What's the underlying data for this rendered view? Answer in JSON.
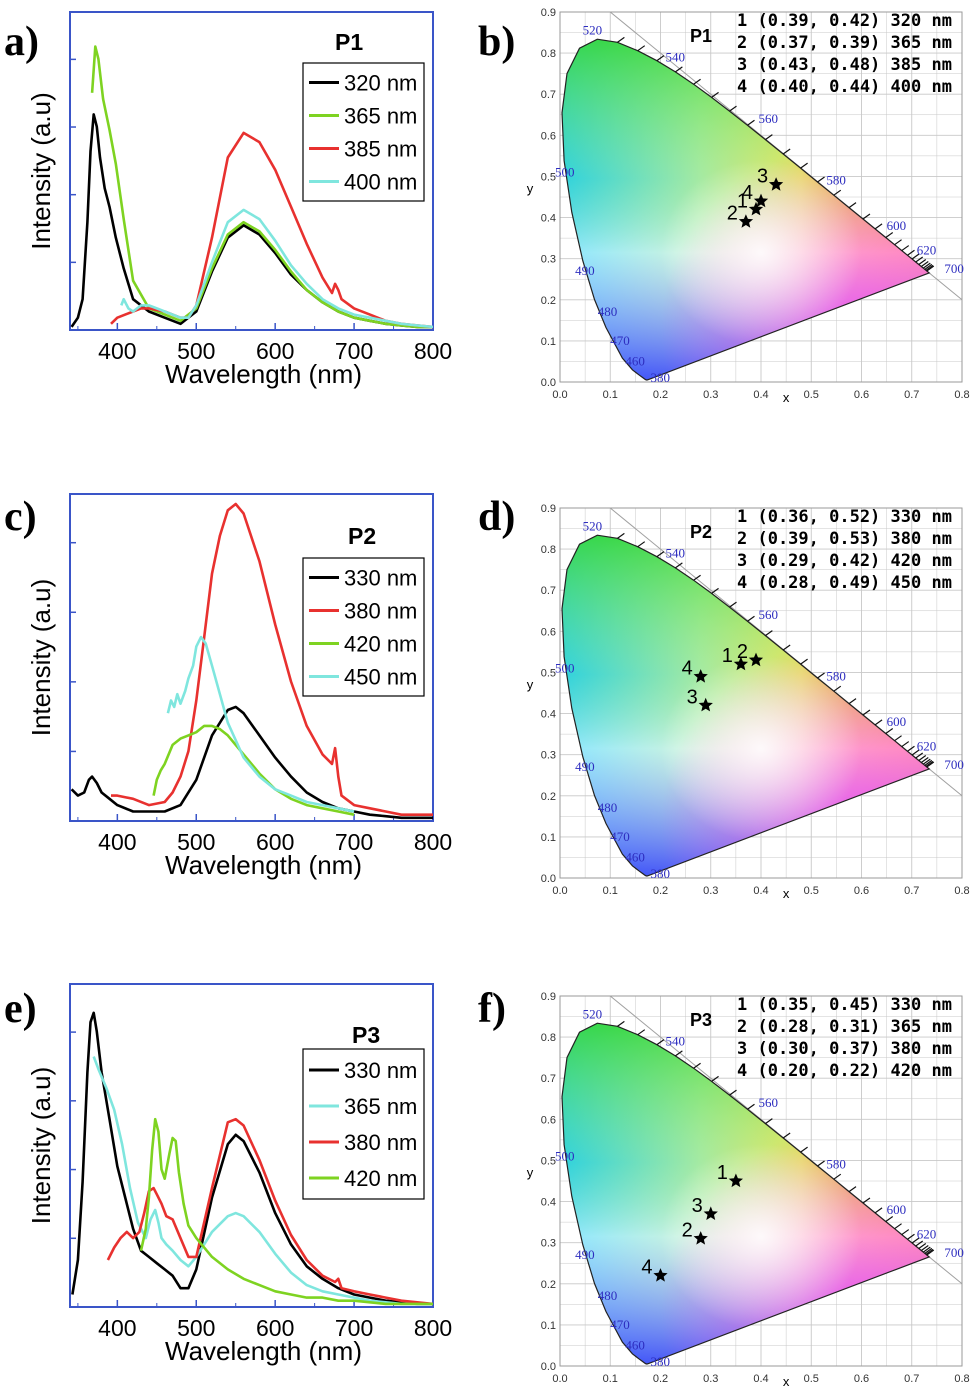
{
  "emission_axis": {
    "xlabel": "Wavelength (nm)",
    "ylabel": "Intensity (a.u)",
    "xlim": [
      340,
      800
    ],
    "xticks": [
      400,
      500,
      600,
      700,
      800
    ],
    "ylim": [
      0,
      1
    ]
  },
  "cie_axis": {
    "xlabel": "x",
    "ylabel": "y",
    "xticks": [
      "0.0",
      "0.1",
      "0.2",
      "0.3",
      "0.4",
      "0.5",
      "0.6",
      "0.7",
      "0.8"
    ],
    "yticks": [
      "0.0",
      "0.1",
      "0.2",
      "0.3",
      "0.4",
      "0.5",
      "0.6",
      "0.7",
      "0.8",
      "0.9"
    ],
    "wavelength_labels": [
      "380",
      "460",
      "470",
      "480",
      "490",
      "500",
      "520",
      "540",
      "560",
      "580",
      "600",
      "620",
      "700"
    ]
  },
  "colors": {
    "axis_blue": "#3a55c8",
    "black": "#000000",
    "green": "#7ed321",
    "red": "#e8312f",
    "cyan": "#7fe6de"
  },
  "panels": {
    "a": {
      "letter": "a)",
      "title": "P1"
    },
    "b": {
      "letter": "b)",
      "title": "P1"
    },
    "c": {
      "letter": "c)",
      "title": "P2"
    },
    "d": {
      "letter": "d)",
      "title": "P2"
    },
    "e": {
      "letter": "e)",
      "title": "P3"
    },
    "f": {
      "letter": "f)",
      "title": "P3"
    }
  },
  "chart_data": [
    {
      "id": "a",
      "type": "line",
      "title": "P1",
      "xlabel": "Wavelength (nm)",
      "ylabel": "Intensity (a.u)",
      "xlim": [
        340,
        800
      ],
      "series": [
        {
          "name": "320 nm",
          "color": "#000000",
          "x": [
            342,
            350,
            356,
            362,
            366,
            370,
            374,
            378,
            384,
            390,
            398,
            408,
            420,
            440,
            460,
            480,
            500,
            520,
            540,
            560,
            580,
            600,
            620,
            640,
            660,
            680,
            700,
            720,
            740,
            760,
            780,
            800
          ],
          "y": [
            0.01,
            0.04,
            0.1,
            0.35,
            0.58,
            0.7,
            0.66,
            0.56,
            0.46,
            0.4,
            0.3,
            0.2,
            0.1,
            0.06,
            0.04,
            0.02,
            0.06,
            0.19,
            0.3,
            0.34,
            0.31,
            0.25,
            0.18,
            0.13,
            0.09,
            0.06,
            0.04,
            0.03,
            0.02,
            0.015,
            0.01,
            0.01
          ]
        },
        {
          "name": "365 nm",
          "color": "#7ed321",
          "x": [
            368,
            372,
            376,
            382,
            390,
            398,
            408,
            420,
            440,
            460,
            480,
            500,
            520,
            540,
            560,
            580,
            600,
            620,
            640,
            660,
            680,
            700,
            720,
            740,
            760,
            780,
            800
          ],
          "y": [
            0.77,
            0.92,
            0.88,
            0.75,
            0.65,
            0.54,
            0.36,
            0.16,
            0.07,
            0.05,
            0.03,
            0.07,
            0.2,
            0.31,
            0.35,
            0.32,
            0.26,
            0.19,
            0.13,
            0.09,
            0.06,
            0.04,
            0.03,
            0.02,
            0.015,
            0.01,
            0.01
          ]
        },
        {
          "name": "385 nm",
          "color": "#e8312f",
          "x": [
            392,
            400,
            410,
            420,
            430,
            440,
            450,
            460,
            470,
            480,
            490,
            500,
            520,
            540,
            560,
            580,
            600,
            620,
            640,
            660,
            672,
            676,
            680,
            684,
            700,
            720,
            740,
            760,
            780,
            800
          ],
          "y": [
            0.02,
            0.04,
            0.05,
            0.06,
            0.07,
            0.07,
            0.065,
            0.06,
            0.05,
            0.04,
            0.04,
            0.08,
            0.3,
            0.56,
            0.64,
            0.61,
            0.52,
            0.4,
            0.28,
            0.17,
            0.12,
            0.15,
            0.13,
            0.1,
            0.07,
            0.05,
            0.03,
            0.02,
            0.015,
            0.01
          ]
        },
        {
          "name": "400 nm",
          "color": "#7fe6de",
          "x": [
            405,
            408,
            414,
            420,
            430,
            440,
            450,
            460,
            470,
            480,
            490,
            500,
            520,
            540,
            560,
            580,
            600,
            620,
            640,
            660,
            680,
            700,
            720,
            740,
            760,
            780,
            800
          ],
          "y": [
            0.08,
            0.1,
            0.07,
            0.06,
            0.08,
            0.08,
            0.07,
            0.06,
            0.05,
            0.04,
            0.04,
            0.08,
            0.22,
            0.35,
            0.39,
            0.36,
            0.29,
            0.21,
            0.15,
            0.1,
            0.07,
            0.05,
            0.04,
            0.03,
            0.02,
            0.015,
            0.01
          ]
        }
      ]
    },
    {
      "id": "c",
      "type": "line",
      "title": "P2",
      "xlabel": "Wavelength (nm)",
      "ylabel": "Intensity (a.u)",
      "xlim": [
        340,
        800
      ],
      "series": [
        {
          "name": "330 nm",
          "color": "#000000",
          "x": [
            342,
            350,
            358,
            364,
            368,
            374,
            380,
            390,
            400,
            420,
            440,
            460,
            480,
            500,
            520,
            540,
            550,
            560,
            580,
            600,
            620,
            640,
            660,
            680,
            700,
            720,
            740,
            760,
            780,
            800
          ],
          "y": [
            0.1,
            0.08,
            0.09,
            0.13,
            0.14,
            0.12,
            0.09,
            0.07,
            0.05,
            0.03,
            0.03,
            0.03,
            0.05,
            0.13,
            0.27,
            0.35,
            0.36,
            0.34,
            0.27,
            0.2,
            0.14,
            0.09,
            0.06,
            0.04,
            0.03,
            0.02,
            0.015,
            0.01,
            0.01,
            0.01
          ]
        },
        {
          "name": "380 nm",
          "color": "#e8312f",
          "x": [
            392,
            400,
            420,
            440,
            460,
            470,
            480,
            490,
            500,
            510,
            520,
            530,
            540,
            550,
            560,
            580,
            600,
            620,
            640,
            660,
            672,
            676,
            680,
            684,
            700,
            720,
            740,
            760,
            780,
            800
          ],
          "y": [
            0.08,
            0.08,
            0.07,
            0.05,
            0.06,
            0.09,
            0.14,
            0.22,
            0.38,
            0.58,
            0.78,
            0.9,
            0.98,
            1.0,
            0.97,
            0.82,
            0.62,
            0.44,
            0.3,
            0.21,
            0.18,
            0.23,
            0.14,
            0.08,
            0.05,
            0.04,
            0.03,
            0.02,
            0.02,
            0.02
          ]
        },
        {
          "name": "420 nm",
          "color": "#7ed321",
          "x": [
            446,
            450,
            455,
            460,
            470,
            480,
            490,
            500,
            510,
            520,
            530,
            540,
            560,
            580,
            600,
            620,
            640,
            660,
            680,
            700
          ],
          "y": [
            0.08,
            0.13,
            0.16,
            0.18,
            0.24,
            0.26,
            0.27,
            0.28,
            0.3,
            0.3,
            0.29,
            0.27,
            0.21,
            0.15,
            0.1,
            0.07,
            0.05,
            0.04,
            0.03,
            0.02
          ]
        },
        {
          "name": "450 nm",
          "color": "#7fe6de",
          "x": [
            464,
            468,
            472,
            476,
            480,
            486,
            490,
            496,
            500,
            506,
            512,
            520,
            530,
            540,
            560,
            580,
            600,
            620,
            640,
            660,
            680,
            700
          ],
          "y": [
            0.34,
            0.38,
            0.36,
            0.4,
            0.37,
            0.41,
            0.45,
            0.49,
            0.55,
            0.58,
            0.56,
            0.49,
            0.4,
            0.31,
            0.2,
            0.14,
            0.1,
            0.08,
            0.06,
            0.05,
            0.04,
            0.03
          ]
        }
      ]
    },
    {
      "id": "e",
      "type": "line",
      "title": "P3",
      "xlabel": "Wavelength (nm)",
      "ylabel": "Intensity (a.u)",
      "xlim": [
        340,
        800
      ],
      "series": [
        {
          "name": "330 nm",
          "color": "#000000",
          "x": [
            343,
            350,
            356,
            362,
            366,
            370,
            374,
            380,
            390,
            400,
            410,
            420,
            430,
            440,
            450,
            460,
            470,
            480,
            490,
            500,
            520,
            540,
            550,
            560,
            580,
            600,
            620,
            640,
            660,
            680,
            700,
            720,
            740,
            760,
            780,
            800
          ],
          "y": [
            0.04,
            0.15,
            0.4,
            0.75,
            0.91,
            0.94,
            0.88,
            0.75,
            0.6,
            0.45,
            0.35,
            0.25,
            0.18,
            0.16,
            0.14,
            0.12,
            0.1,
            0.06,
            0.06,
            0.12,
            0.35,
            0.52,
            0.55,
            0.53,
            0.43,
            0.3,
            0.2,
            0.13,
            0.09,
            0.06,
            0.04,
            0.03,
            0.02,
            0.015,
            0.01,
            0.01
          ]
        },
        {
          "name": "365 nm",
          "color": "#7fe6de",
          "x": [
            370,
            376,
            386,
            396,
            406,
            416,
            426,
            436,
            442,
            448,
            452,
            456,
            462,
            470,
            480,
            490,
            500,
            520,
            540,
            550,
            560,
            580,
            600,
            620,
            640,
            660,
            680,
            700,
            720,
            740,
            760,
            780,
            800
          ],
          "y": [
            0.8,
            0.76,
            0.7,
            0.63,
            0.52,
            0.38,
            0.27,
            0.22,
            0.28,
            0.31,
            0.27,
            0.22,
            0.2,
            0.18,
            0.15,
            0.13,
            0.16,
            0.24,
            0.29,
            0.3,
            0.29,
            0.24,
            0.17,
            0.11,
            0.07,
            0.05,
            0.04,
            0.03,
            0.02,
            0.015,
            0.01,
            0.01,
            0.01
          ]
        },
        {
          "name": "380 nm",
          "color": "#e8312f",
          "x": [
            388,
            396,
            404,
            412,
            420,
            428,
            434,
            440,
            446,
            450,
            456,
            462,
            470,
            480,
            490,
            500,
            520,
            540,
            550,
            560,
            580,
            600,
            620,
            640,
            660,
            676,
            680,
            684,
            700,
            720,
            740,
            760,
            780,
            800
          ],
          "y": [
            0.15,
            0.19,
            0.22,
            0.24,
            0.22,
            0.24,
            0.3,
            0.37,
            0.38,
            0.36,
            0.33,
            0.29,
            0.28,
            0.22,
            0.16,
            0.16,
            0.38,
            0.59,
            0.6,
            0.58,
            0.47,
            0.34,
            0.23,
            0.15,
            0.1,
            0.08,
            0.09,
            0.06,
            0.05,
            0.04,
            0.03,
            0.02,
            0.015,
            0.01
          ]
        },
        {
          "name": "420 nm",
          "color": "#7ed321",
          "x": [
            430,
            436,
            440,
            444,
            448,
            452,
            456,
            460,
            466,
            470,
            474,
            478,
            484,
            490,
            500,
            520,
            540,
            560,
            580,
            600,
            620,
            640,
            660,
            680,
            700,
            720,
            740,
            760,
            780,
            800
          ],
          "y": [
            0.18,
            0.25,
            0.35,
            0.5,
            0.6,
            0.56,
            0.44,
            0.41,
            0.49,
            0.54,
            0.53,
            0.43,
            0.33,
            0.26,
            0.22,
            0.16,
            0.12,
            0.09,
            0.07,
            0.05,
            0.04,
            0.03,
            0.03,
            0.02,
            0.02,
            0.015,
            0.01,
            0.01,
            0.01,
            0.01
          ]
        }
      ]
    },
    {
      "id": "b",
      "type": "scatter",
      "title": "P1",
      "xlabel": "x",
      "ylabel": "y",
      "xlim": [
        0,
        0.8
      ],
      "ylim": [
        0,
        0.9
      ],
      "info": [
        "1 (0.39, 0.42) 320 nm",
        "2 (0.37, 0.39) 365 nm",
        "3 (0.43, 0.48) 385 nm",
        "4 (0.40, 0.44) 400 nm"
      ],
      "points": [
        {
          "label": "1",
          "x": 0.39,
          "y": 0.42
        },
        {
          "label": "2",
          "x": 0.37,
          "y": 0.39
        },
        {
          "label": "3",
          "x": 0.43,
          "y": 0.48
        },
        {
          "label": "4",
          "x": 0.4,
          "y": 0.44
        }
      ]
    },
    {
      "id": "d",
      "type": "scatter",
      "title": "P2",
      "xlabel": "x",
      "ylabel": "y",
      "xlim": [
        0,
        0.8
      ],
      "ylim": [
        0,
        0.9
      ],
      "info": [
        "1 (0.36, 0.52) 330 nm",
        "2 (0.39, 0.53) 380 nm",
        "3 (0.29, 0.42) 420 nm",
        "4 (0.28, 0.49) 450 nm"
      ],
      "points": [
        {
          "label": "1",
          "x": 0.36,
          "y": 0.52
        },
        {
          "label": "2",
          "x": 0.39,
          "y": 0.53
        },
        {
          "label": "3",
          "x": 0.29,
          "y": 0.42
        },
        {
          "label": "4",
          "x": 0.28,
          "y": 0.49
        }
      ]
    },
    {
      "id": "f",
      "type": "scatter",
      "title": "P3",
      "xlabel": "x",
      "ylabel": "y",
      "xlim": [
        0,
        0.8
      ],
      "ylim": [
        0,
        0.9
      ],
      "info": [
        "1 (0.35, 0.45) 330 nm",
        "2 (0.28, 0.31) 365 nm",
        "3 (0.30, 0.37) 380 nm",
        "4 (0.20, 0.22) 420 nm"
      ],
      "points": [
        {
          "label": "1",
          "x": 0.35,
          "y": 0.45
        },
        {
          "label": "2",
          "x": 0.28,
          "y": 0.31
        },
        {
          "label": "3",
          "x": 0.3,
          "y": 0.37
        },
        {
          "label": "4",
          "x": 0.2,
          "y": 0.22
        }
      ]
    }
  ]
}
